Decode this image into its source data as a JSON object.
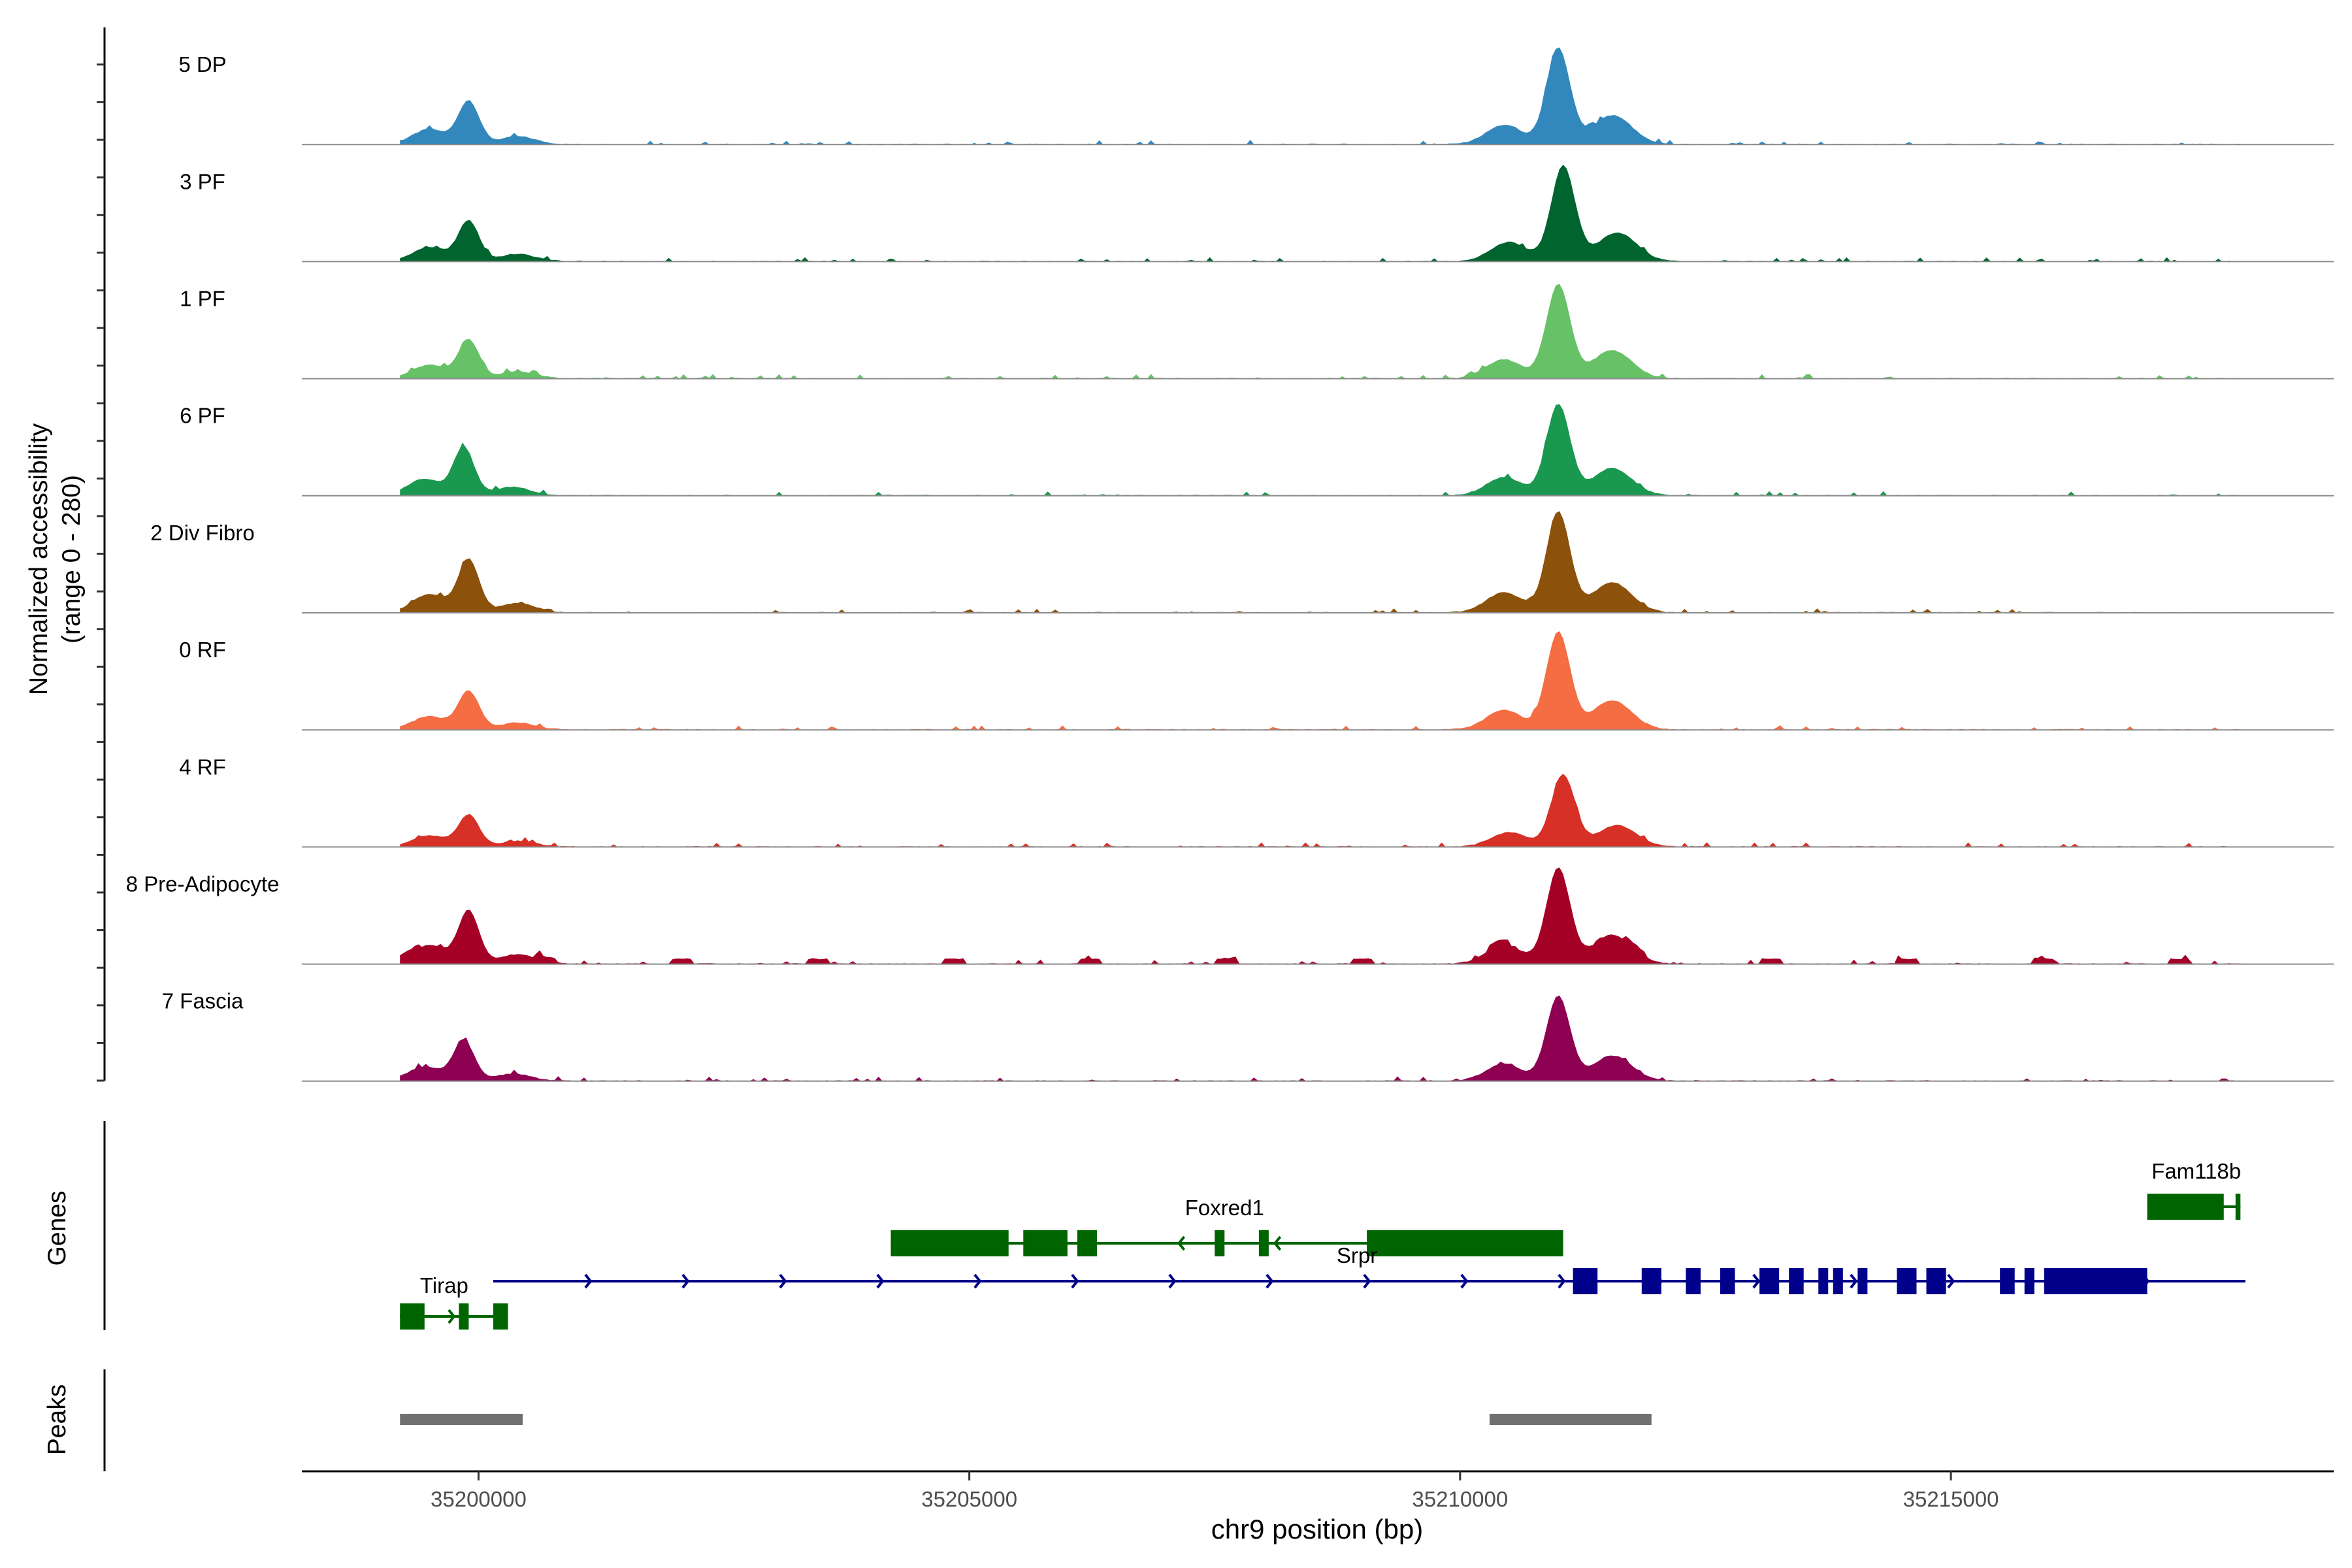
{
  "chart_data": [
    {
      "type": "area",
      "title": "",
      "ylabel_line1": "Normalized accessibility",
      "ylabel_line2": "(range 0 - 280)",
      "ylim": [
        0,
        280
      ],
      "xlim": [
        35198200,
        35218900
      ],
      "series": [
        {
          "name": "5 DP",
          "color": "#3288BD",
          "peaks": [
            {
              "x": 35199900,
              "h": 0.45
            },
            {
              "x": 35211000,
              "h": 1.0
            }
          ]
        },
        {
          "name": "3 PF",
          "color": "#00642F",
          "peaks": [
            {
              "x": 35199900,
              "h": 0.42
            },
            {
              "x": 35211050,
              "h": 1.0
            }
          ]
        },
        {
          "name": "1 PF",
          "color": "#66C167",
          "peaks": [
            {
              "x": 35199900,
              "h": 0.4
            },
            {
              "x": 35211000,
              "h": 0.98
            }
          ]
        },
        {
          "name": "6 PF",
          "color": "#1A9850",
          "peaks": [
            {
              "x": 35199850,
              "h": 0.5
            },
            {
              "x": 35211000,
              "h": 0.95
            }
          ]
        },
        {
          "name": "2 Div Fibro",
          "color": "#8C510A",
          "peaks": [
            {
              "x": 35199900,
              "h": 0.55
            },
            {
              "x": 35211000,
              "h": 1.05
            }
          ]
        },
        {
          "name": "0 RF",
          "color": "#F46D43",
          "peaks": [
            {
              "x": 35199900,
              "h": 0.4
            },
            {
              "x": 35211000,
              "h": 1.02
            }
          ]
        },
        {
          "name": "4 RF",
          "color": "#D73027",
          "peaks": [
            {
              "x": 35199900,
              "h": 0.33
            },
            {
              "x": 35211050,
              "h": 0.75
            }
          ]
        },
        {
          "name": "8 Pre-Adipocyte",
          "color": "#A50026",
          "peaks": [
            {
              "x": 35199900,
              "h": 0.55
            },
            {
              "x": 35211000,
              "h": 1.0
            }
          ]
        },
        {
          "name": "7 Fascia",
          "color": "#8E0152",
          "peaks": [
            {
              "x": 35199850,
              "h": 0.42
            },
            {
              "x": 35211000,
              "h": 0.88
            }
          ]
        }
      ]
    },
    {
      "type": "gene-track",
      "ylabel": "Genes",
      "genes": [
        {
          "name": "Fam118b",
          "strand": "+",
          "color": "#006400",
          "start": 35217000,
          "end": 35217950,
          "exons": [
            [
              35217000,
              35217780
            ],
            [
              35217900,
              35217950
            ]
          ]
        },
        {
          "name": "Foxred1",
          "strand": "-",
          "color": "#006400",
          "start": 35204200,
          "end": 35211050,
          "exons": [
            [
              35204200,
              35205400
            ],
            [
              35205550,
              35206000
            ],
            [
              35206100,
              35206300
            ],
            [
              35207500,
              35207600
            ],
            [
              35207950,
              35208050
            ],
            [
              35209050,
              35211050
            ]
          ]
        },
        {
          "name": "Srpr",
          "strand": "+",
          "color": "#00008B",
          "start": 35200150,
          "end": 35218000,
          "exons": [
            [
              35211150,
              35211400
            ],
            [
              35211850,
              35212050
            ],
            [
              35212300,
              35212450
            ],
            [
              35212650,
              35212800
            ],
            [
              35213050,
              35213250
            ],
            [
              35213350,
              35213500
            ],
            [
              35213650,
              35213750
            ],
            [
              35213800,
              35213900
            ],
            [
              35214050,
              35214150
            ],
            [
              35214450,
              35214650
            ],
            [
              35214750,
              35214950
            ],
            [
              35215500,
              35215650
            ],
            [
              35215750,
              35215850
            ],
            [
              35215950,
              35217000
            ]
          ]
        },
        {
          "name": "Tirap",
          "strand": "+",
          "color": "#006400",
          "start": 35199200,
          "end": 35200300,
          "exons": [
            [
              35199200,
              35199450
            ],
            [
              35199800,
              35199900
            ],
            [
              35200150,
              35200300
            ]
          ]
        }
      ]
    },
    {
      "type": "peaks",
      "ylabel": "Peaks",
      "color": "#707070",
      "peaks": [
        [
          35199200,
          35200450
        ],
        [
          35210300,
          35211950
        ]
      ]
    }
  ],
  "x_axis": {
    "label": "chr9 position (bp)",
    "ticks": [
      35200000,
      35205000,
      35210000,
      35215000
    ],
    "tick_labels": [
      "35200000",
      "35205000",
      "35210000",
      "35215000"
    ]
  }
}
